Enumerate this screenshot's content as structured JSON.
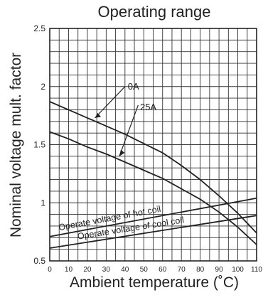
{
  "chart_data": {
    "type": "line",
    "title": "Operating range",
    "xlabel": "Ambient temperature (˚C)",
    "ylabel": "Nominal voltage mult. factor",
    "xlim": [
      0,
      110
    ],
    "ylim": [
      0.5,
      2.5
    ],
    "x_ticks": [
      "0",
      "10",
      "20",
      "30",
      "40",
      "50",
      "60",
      "70",
      "80",
      "90",
      "100",
      "110"
    ],
    "y_ticks": [
      "0.5",
      "1",
      "1.5",
      "2",
      "2.5"
    ],
    "grid": true,
    "series": [
      {
        "name": "0A",
        "x": [
          0,
          10,
          20,
          30,
          40,
          50,
          60,
          70,
          80,
          90,
          100,
          110
        ],
        "y": [
          1.87,
          1.8,
          1.73,
          1.66,
          1.59,
          1.51,
          1.43,
          1.32,
          1.2,
          1.06,
          0.91,
          0.74
        ]
      },
      {
        "name": "25A",
        "x": [
          0,
          10,
          20,
          30,
          40,
          50,
          60,
          70,
          80,
          90,
          100,
          110
        ],
        "y": [
          1.61,
          1.55,
          1.48,
          1.42,
          1.35,
          1.28,
          1.21,
          1.12,
          1.03,
          0.92,
          0.79,
          0.64
        ]
      },
      {
        "name": "Operate voltage of hot coil",
        "x": [
          0,
          110
        ],
        "y": [
          0.71,
          1.04
        ]
      },
      {
        "name": "Operate voltage of cool coil",
        "x": [
          0,
          110
        ],
        "y": [
          0.61,
          0.89
        ]
      }
    ],
    "annotations": [
      "0A",
      "25A",
      "Operate voltage of hot coil",
      "Operate voltage of cool coil"
    ]
  }
}
